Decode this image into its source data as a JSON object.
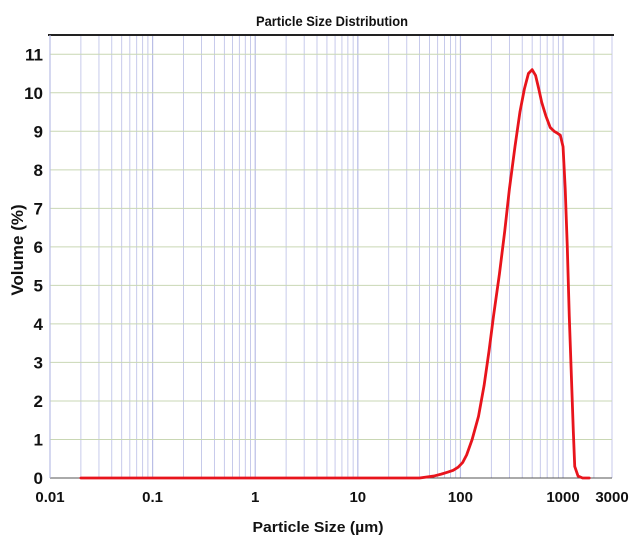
{
  "chart_data": {
    "type": "line",
    "title": "Particle Size Distribution",
    "xlabel": "Particle Size (µm)",
    "ylabel": "Volume (%)",
    "x_scale": "log",
    "xlim": [
      0.01,
      3000
    ],
    "ylim": [
      0,
      11.5
    ],
    "x_ticks": [
      0.01,
      0.1,
      1,
      10,
      100,
      1000,
      3000
    ],
    "x_tick_labels": [
      "0.01",
      "0.1",
      "1",
      "10",
      "100",
      "1000",
      "3000"
    ],
    "y_ticks": [
      0,
      1,
      2,
      3,
      4,
      5,
      6,
      7,
      8,
      9,
      10,
      11
    ],
    "y_tick_labels": [
      "0",
      "1",
      "2",
      "3",
      "4",
      "5",
      "6",
      "7",
      "8",
      "9",
      "10",
      "11"
    ],
    "grid": true,
    "legend": "none",
    "colors": {
      "line": "#e8141c",
      "vertical_grid": "#b9bde6",
      "horizontal_grid": "#c9d7b4",
      "top_border": "#222222",
      "axis": "#555555"
    },
    "series": [
      {
        "x": [
          0.02,
          0.05,
          0.1,
          1,
          10,
          40,
          55,
          65,
          75,
          85,
          95,
          105,
          115,
          130,
          150,
          170,
          190,
          210,
          240,
          270,
          300,
          340,
          380,
          420,
          460,
          500,
          540,
          580,
          620,
          680,
          750,
          820,
          880,
          940,
          1000,
          1050,
          1100,
          1150,
          1200,
          1260,
          1300,
          1400,
          1550,
          1700,
          1800
        ],
        "y": [
          0,
          0,
          0,
          0,
          0,
          0,
          0.05,
          0.1,
          0.15,
          0.2,
          0.28,
          0.4,
          0.6,
          1.0,
          1.6,
          2.4,
          3.3,
          4.2,
          5.3,
          6.4,
          7.5,
          8.6,
          9.5,
          10.1,
          10.5,
          10.6,
          10.45,
          10.1,
          9.75,
          9.4,
          9.1,
          9.0,
          8.95,
          8.9,
          8.6,
          7.5,
          6.0,
          4.2,
          2.8,
          1.2,
          0.3,
          0.05,
          0,
          0,
          0
        ]
      }
    ]
  }
}
